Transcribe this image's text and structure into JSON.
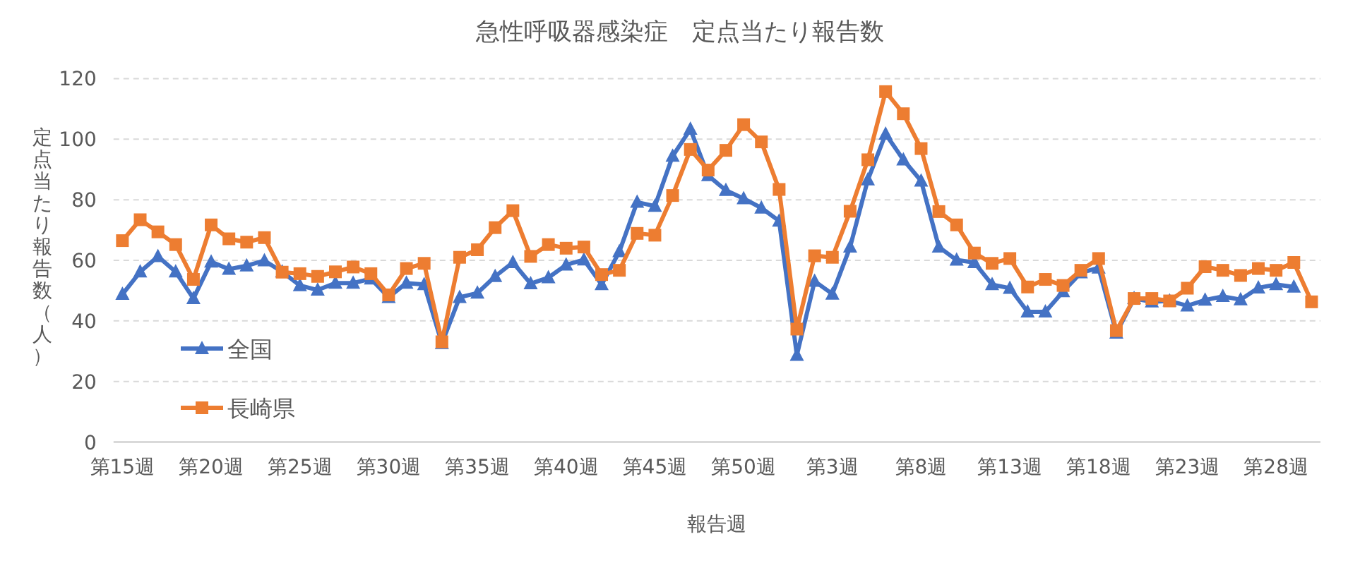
{
  "chart_data": {
    "type": "line",
    "title": "急性呼吸器感染症　定点当たり報告数",
    "xlabel": "報告週",
    "ylabel": "定点当たり報告数（人）",
    "categories": [
      "第15週",
      null,
      null,
      null,
      null,
      "第20週",
      null,
      null,
      null,
      null,
      "第25週",
      null,
      null,
      null,
      null,
      "第30週",
      null,
      null,
      null,
      null,
      "第35週",
      null,
      null,
      null,
      null,
      "第40週",
      null,
      null,
      null,
      null,
      "第45週",
      null,
      null,
      null,
      null,
      "第50週",
      null,
      null,
      null,
      null,
      "第3週",
      null,
      null,
      null,
      null,
      "第8週",
      null,
      null,
      null,
      null,
      "第13週",
      null,
      null,
      null,
      null,
      "第18週",
      null,
      null,
      null,
      null,
      "第23週",
      null,
      null,
      null,
      null,
      "第28週",
      null,
      null
    ],
    "series": [
      {
        "name": "全国",
        "color": "#4472c4",
        "marker": "triangle",
        "values": [
          48.8,
          56.2,
          61.3,
          56.2,
          47.4,
          59.5,
          57.1,
          58.2,
          59.9,
          56.2,
          51.7,
          50.2,
          52.5,
          52.5,
          53.9,
          47.8,
          52.5,
          52.0,
          32.6,
          47.8,
          49.2,
          54.7,
          59.3,
          52.3,
          54.3,
          58.5,
          60.2,
          52.0,
          62.9,
          79.2,
          77.9,
          94.4,
          103.3,
          88.0,
          83.1,
          80.4,
          77.3,
          73.0,
          28.7,
          53.1,
          48.9,
          64.4,
          86.6,
          101.7,
          93.2,
          86.2,
          64.4,
          60.1,
          59.3,
          52.0,
          50.8,
          43.0,
          43.0,
          49.7,
          55.9,
          57.5,
          36.0,
          47.4,
          46.3,
          46.6,
          45.0,
          46.9,
          48.1,
          47.0,
          50.9,
          52.0,
          51.2,
          null
        ]
      },
      {
        "name": "長崎県",
        "color": "#ed7d31",
        "marker": "square",
        "values": [
          66.5,
          73.4,
          69.4,
          65.2,
          53.7,
          71.7,
          67.1,
          66.0,
          67.5,
          56.1,
          55.6,
          54.7,
          56.2,
          57.8,
          55.6,
          48.6,
          57.3,
          59.0,
          33.1,
          61.0,
          63.5,
          70.8,
          76.4,
          61.3,
          65.2,
          64.0,
          64.4,
          55.3,
          56.7,
          68.9,
          68.3,
          81.4,
          96.6,
          89.8,
          96.3,
          104.8,
          99.1,
          83.4,
          37.3,
          61.5,
          61.0,
          76.2,
          93.2,
          115.7,
          108.4,
          96.9,
          76.1,
          71.7,
          62.4,
          59.0,
          60.6,
          51.2,
          53.7,
          51.7,
          56.7,
          60.6,
          36.8,
          47.4,
          47.4,
          46.6,
          50.8,
          57.9,
          56.7,
          55.0,
          57.3,
          56.7,
          59.3,
          46.3
        ]
      }
    ],
    "ylim": [
      0,
      120
    ],
    "yticks": [
      0,
      20,
      40,
      60,
      80,
      100,
      120
    ],
    "grid": "y",
    "legend": "left",
    "line_style": "solid"
  }
}
